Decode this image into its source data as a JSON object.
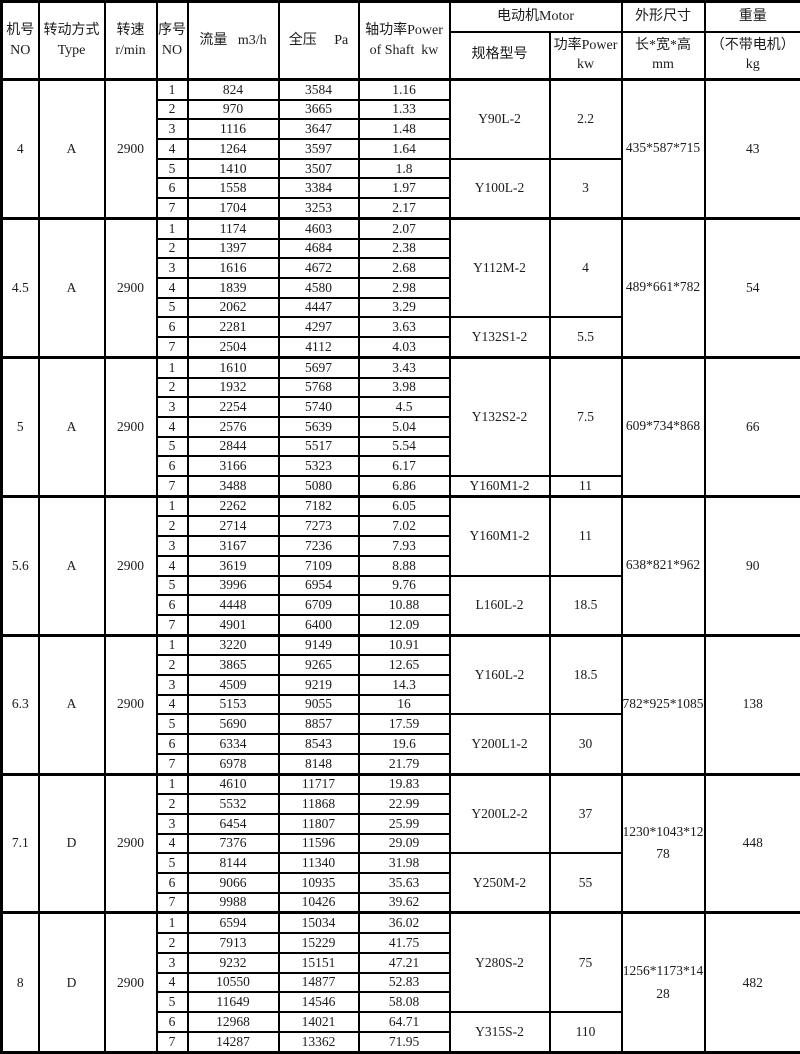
{
  "colors": {
    "background": "#ffffff",
    "border": "#000000",
    "text": "#1b1b1b"
  },
  "table": {
    "header": {
      "machine_no": "机号\nNO",
      "drive_type": "转动方式\nType",
      "speed": "转速\nr/min",
      "serial_no": "序号\nNO",
      "flow": "流量   m3/h",
      "pressure": "全压     Pa",
      "shaft_power": "轴功率Power\nof Shaft  kw",
      "motor_group": "电动机Motor",
      "motor_model": "规格型号",
      "motor_power": "功率Power\nkw",
      "dimensions_group": "外形尺寸",
      "dimensions_sub": "长*宽*高\nmm",
      "weight_group": "重量",
      "weight_sub": "（不带电机）\nkg"
    },
    "sections": [
      {
        "no": "4",
        "type": "A",
        "speed": "2900",
        "rows": [
          [
            "1",
            "824",
            "3584",
            "1.16"
          ],
          [
            "2",
            "970",
            "3665",
            "1.33"
          ],
          [
            "3",
            "1116",
            "3647",
            "1.48"
          ],
          [
            "4",
            "1264",
            "3597",
            "1.64"
          ],
          [
            "5",
            "1410",
            "3507",
            "1.8"
          ],
          [
            "6",
            "1558",
            "3384",
            "1.97"
          ],
          [
            "7",
            "1704",
            "3253",
            "2.17"
          ]
        ],
        "motors": [
          {
            "model": "Y90L-2",
            "power": "2.2",
            "span": 4
          },
          {
            "model": "Y100L-2",
            "power": "3",
            "span": 3
          }
        ],
        "dimensions": "435*587*715",
        "weight": "43"
      },
      {
        "no": "4.5",
        "type": "A",
        "speed": "2900",
        "rows": [
          [
            "1",
            "1174",
            "4603",
            "2.07"
          ],
          [
            "2",
            "1397",
            "4684",
            "2.38"
          ],
          [
            "3",
            "1616",
            "4672",
            "2.68"
          ],
          [
            "4",
            "1839",
            "4580",
            "2.98"
          ],
          [
            "5",
            "2062",
            "4447",
            "3.29"
          ],
          [
            "6",
            "2281",
            "4297",
            "3.63"
          ],
          [
            "7",
            "2504",
            "4112",
            "4.03"
          ]
        ],
        "motors": [
          {
            "model": "Y112M-2",
            "power": "4",
            "span": 5
          },
          {
            "model": "Y132S1-2",
            "power": "5.5",
            "span": 2
          }
        ],
        "dimensions": "489*661*782",
        "weight": "54"
      },
      {
        "no": "5",
        "type": "A",
        "speed": "2900",
        "rows": [
          [
            "1",
            "1610",
            "5697",
            "3.43"
          ],
          [
            "2",
            "1932",
            "5768",
            "3.98"
          ],
          [
            "3",
            "2254",
            "5740",
            "4.5"
          ],
          [
            "4",
            "2576",
            "5639",
            "5.04"
          ],
          [
            "5",
            "2844",
            "5517",
            "5.54"
          ],
          [
            "6",
            "3166",
            "5323",
            "6.17"
          ],
          [
            "7",
            "3488",
            "5080",
            "6.86"
          ]
        ],
        "motors": [
          {
            "model": "Y132S2-2",
            "power": "7.5",
            "span": 6
          },
          {
            "model": "Y160M1-2",
            "power": "11",
            "span": 1
          }
        ],
        "dimensions": "609*734*868",
        "weight": "66"
      },
      {
        "no": "5.6",
        "type": "A",
        "speed": "2900",
        "rows": [
          [
            "1",
            "2262",
            "7182",
            "6.05"
          ],
          [
            "2",
            "2714",
            "7273",
            "7.02"
          ],
          [
            "3",
            "3167",
            "7236",
            "7.93"
          ],
          [
            "4",
            "3619",
            "7109",
            "8.88"
          ],
          [
            "5",
            "3996",
            "6954",
            "9.76"
          ],
          [
            "6",
            "4448",
            "6709",
            "10.88"
          ],
          [
            "7",
            "4901",
            "6400",
            "12.09"
          ]
        ],
        "motors": [
          {
            "model": "Y160M1-2",
            "power": "11",
            "span": 4
          },
          {
            "model": "L160L-2",
            "power": "18.5",
            "span": 3
          }
        ],
        "dimensions": "638*821*962",
        "weight": "90"
      },
      {
        "no": "6.3",
        "type": "A",
        "speed": "2900",
        "rows": [
          [
            "1",
            "3220",
            "9149",
            "10.91"
          ],
          [
            "2",
            "3865",
            "9265",
            "12.65"
          ],
          [
            "3",
            "4509",
            "9219",
            "14.3"
          ],
          [
            "4",
            "5153",
            "9055",
            "16"
          ],
          [
            "5",
            "5690",
            "8857",
            "17.59"
          ],
          [
            "6",
            "6334",
            "8543",
            "19.6"
          ],
          [
            "7",
            "6978",
            "8148",
            "21.79"
          ]
        ],
        "motors": [
          {
            "model": "Y160L-2",
            "power": "18.5",
            "span": 4
          },
          {
            "model": "Y200L1-2",
            "power": "30",
            "span": 3
          }
        ],
        "dimensions": "782*925*1085",
        "weight": "138"
      },
      {
        "no": "7.1",
        "type": "D",
        "speed": "2900",
        "rows": [
          [
            "1",
            "4610",
            "11717",
            "19.83"
          ],
          [
            "2",
            "5532",
            "11868",
            "22.99"
          ],
          [
            "3",
            "6454",
            "11807",
            "25.99"
          ],
          [
            "4",
            "7376",
            "11596",
            "29.09"
          ],
          [
            "5",
            "8144",
            "11340",
            "31.98"
          ],
          [
            "6",
            "9066",
            "10935",
            "35.63"
          ],
          [
            "7",
            "9988",
            "10426",
            "39.62"
          ]
        ],
        "motors": [
          {
            "model": "Y200L2-2",
            "power": "37",
            "span": 4
          },
          {
            "model": "Y250M-2",
            "power": "55",
            "span": 3
          }
        ],
        "dimensions": "1230*1043*1278",
        "weight": "448"
      },
      {
        "no": "8",
        "type": "D",
        "speed": "2900",
        "rows": [
          [
            "1",
            "6594",
            "15034",
            "36.02"
          ],
          [
            "2",
            "7913",
            "15229",
            "41.75"
          ],
          [
            "3",
            "9232",
            "15151",
            "47.21"
          ],
          [
            "4",
            "10550",
            "14877",
            "52.83"
          ],
          [
            "5",
            "11649",
            "14546",
            "58.08"
          ],
          [
            "6",
            "12968",
            "14021",
            "64.71"
          ],
          [
            "7",
            "14287",
            "13362",
            "71.95"
          ]
        ],
        "motors": [
          {
            "model": "Y280S-2",
            "power": "75",
            "span": 5
          },
          {
            "model": "Y315S-2",
            "power": "110",
            "span": 2
          }
        ],
        "dimensions": "1256*1173*1428",
        "weight": "482"
      }
    ]
  }
}
